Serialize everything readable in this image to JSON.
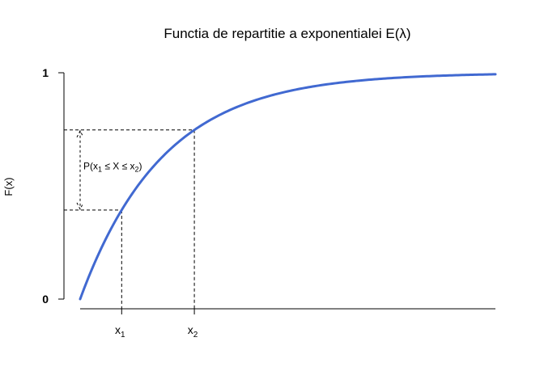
{
  "chart_data": {
    "type": "line",
    "title": "Functia de repartitie a exponentialei E(λ)",
    "ylabel": "F(x)",
    "xlabel": "",
    "ylim": [
      0,
      1
    ],
    "xlim": [
      0,
      10
    ],
    "y_ticks": [
      {
        "value": 0,
        "label": "0"
      },
      {
        "value": 1,
        "label": "1"
      }
    ],
    "x_ticks": [
      {
        "value": 1,
        "base": "x",
        "sub": "1"
      },
      {
        "value": 2.75,
        "base": "x",
        "sub": "2"
      }
    ],
    "series": [
      {
        "function": "1 - exp(-0.5*x)",
        "lambda": 0.5,
        "x_start": 0,
        "x_end": 10
      }
    ],
    "annotation": {
      "prefix": "P(x",
      "sub1": "1",
      "middle": " ≤ X ≤ x",
      "sub2": "2",
      "suffix": ")"
    },
    "colors": {
      "curve": "#4169d1",
      "guides": "#000000"
    },
    "grid": false
  }
}
